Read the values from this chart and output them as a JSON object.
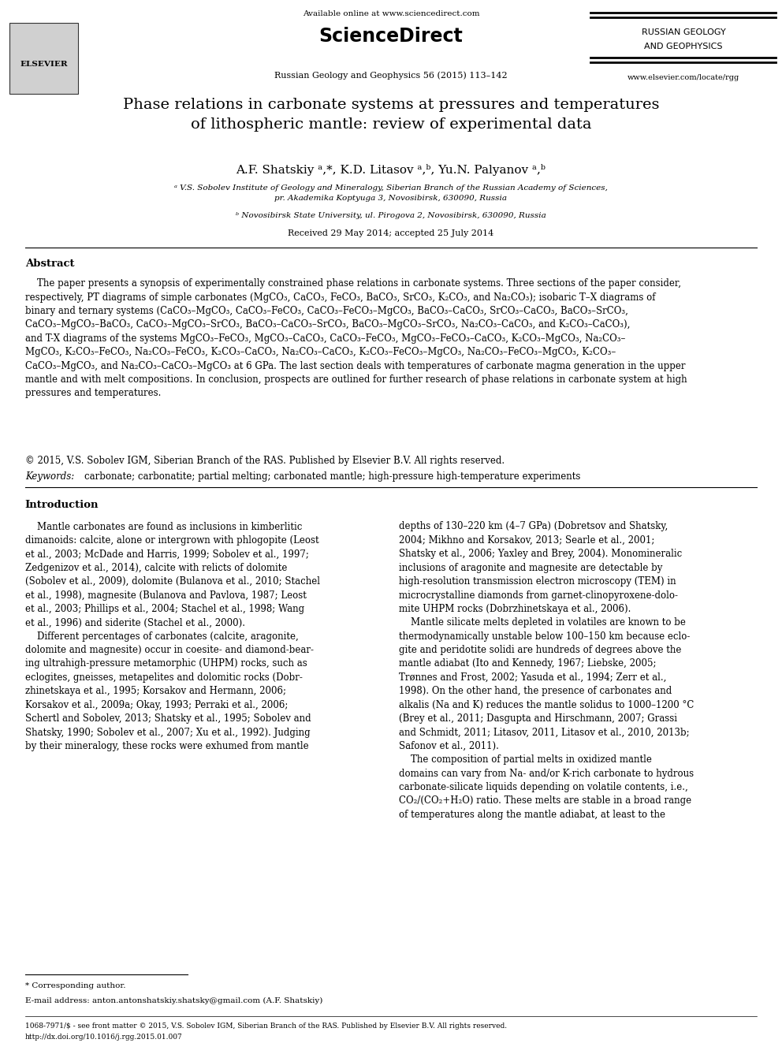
{
  "page_width": 9.92,
  "page_height": 13.23,
  "bg_color": "#ffffff",
  "header_available": "Available online at www.sciencedirect.com",
  "header_sciencedirect": "ScienceDirect",
  "header_journal": "Russian Geology and Geophysics 56 (2015) 113–142",
  "header_rgg_line1": "RUSSIAN GEOLOGY",
  "header_rgg_line2": "AND GEOPHYSICS",
  "header_website": "www.elsevier.com/locate/rgg",
  "title": "Phase relations in carbonate systems at pressures and temperatures\nof lithospheric mantle: review of experimental data",
  "authors": "A.F. Shatskiy ᵃ,*, K.D. Litasov ᵃ,ᵇ, Yu.N. Palyanov ᵃ,ᵇ",
  "affil_a": "ᵃ V.S. Sobolev Institute of Geology and Mineralogy, Siberian Branch of the Russian Academy of Sciences,\npr. Akademika Koptyuga 3, Novosibirsk, 630090, Russia",
  "affil_b": "ᵇ Novosibirsk State University, ul. Pirogova 2, Novosibirsk, 630090, Russia",
  "received": "Received 29 May 2014; accepted 25 July 2014",
  "abstract_title": "Abstract",
  "abstract_text": "    The paper presents a synopsis of experimentally constrained phase relations in carbonate systems. Three sections of the paper consider,\nrespectively, PT diagrams of simple carbonates (MgCO₃, CaCO₃, FeCO₃, BaCO₃, SrCO₃, K₂CO₃, and Na₂CO₃); isobaric T–X diagrams of\nbinary and ternary systems (CaCO₃–MgCO₃, CaCO₃–FeCO₃, CaCO₃–FeCO₃–MgCO₃, BaCO₃–CaCO₃, SrCO₃–CaCO₃, BaCO₃–SrCO₃,\nCaCO₃–MgCO₃–BaCO₃, CaCO₃–MgCO₃–SrCO₃, BaCO₃–CaCO₃–SrCO₃, BaCO₃–MgCO₃–SrCO₃, Na₂CO₃–CaCO₃, and K₂CO₃–CaCO₃),\nand T-X diagrams of the systems MgCO₃–FeCO₃, MgCO₃–CaCO₃, CaCO₃–FeCO₃, MgCO₃–FeCO₃–CaCO₃, K₂CO₃–MgCO₃, Na₂CO₃–\nMgCO₃, K₂CO₃–FeCO₃, Na₂CO₃–FeCO₃, K₂CO₃–CaCO₃, Na₂CO₃–CaCO₃, K₂CO₃–FeCO₃–MgCO₃, Na₂CO₃–FeCO₃–MgCO₃, K₂CO₃–\nCaCO₃–MgCO₃, and Na₂CO₃–CaCO₃–MgCO₃ at 6 GPa. The last section deals with temperatures of carbonate magma generation in the upper\nmantle and with melt compositions. In conclusion, prospects are outlined for further research of phase relations in carbonate system at high\npressures and temperatures.",
  "copyright": "© 2015, V.S. Sobolev IGM, Siberian Branch of the RAS. Published by Elsevier B.V. All rights reserved.",
  "keywords_label": "Keywords: ",
  "keywords": "carbonate; carbonatite; partial melting; carbonated mantle; high-pressure high-temperature experiments",
  "intro_title": "Introduction",
  "intro_col1": "    Mantle carbonates are found as inclusions in kimberlitic\ndimanoids: calcite, alone or intergrown with phlogopite (Leost\net al., 2003; McDade and Harris, 1999; Sobolev et al., 1997;\nZedgenizov et al., 2014), calcite with relicts of dolomite\n(Sobolev et al., 2009), dolomite (Bulanova et al., 2010; Stachel\net al., 1998), magnesite (Bulanova and Pavlova, 1987; Leost\net al., 2003; Phillips et al., 2004; Stachel et al., 1998; Wang\net al., 1996) and siderite (Stachel et al., 2000).\n    Different percentages of carbonates (calcite, aragonite,\ndolomite and magnesite) occur in coesite- and diamond-bear-\ning ultrahigh-pressure metamorphic (UHPM) rocks, such as\neclogites, gneisses, metapelites and dolomitic rocks (Dobr-\nzhinetskaya et al., 1995; Korsakov and Hermann, 2006;\nKorsakov et al., 2009a; Okay, 1993; Perraki et al., 2006;\nSchertl and Sobolev, 2013; Shatsky et al., 1995; Sobolev and\nShatsky, 1990; Sobolev et al., 2007; Xu et al., 1992). Judging\nby their mineralogy, these rocks were exhumed from mantle",
  "intro_col2": "depths of 130–220 km (4–7 GPa) (Dobretsov and Shatsky,\n2004; Mikhno and Korsakov, 2013; Searle et al., 2001;\nShatsky et al., 2006; Yaxley and Brey, 2004). Monomineralic\ninclusions of aragonite and magnesite are detectable by\nhigh-resolution transmission electron microscopy (TEM) in\nmicrocrystalline diamonds from garnet-clinopyroxene-dolo-\nmite UHPM rocks (Dobrzhinetskaya et al., 2006).\n    Mantle silicate melts depleted in volatiles are known to be\nthermodynamically unstable below 100–150 km because eclo-\ngite and peridotite solidi are hundreds of degrees above the\nmantle adiabat (Ito and Kennedy, 1967; Liebske, 2005;\nTrønnes and Frost, 2002; Yasuda et al., 1994; Zerr et al.,\n1998). On the other hand, the presence of carbonates and\nalkalis (Na and K) reduces the mantle solidus to 1000–1200 °C\n(Brey et al., 2011; Dasgupta and Hirschmann, 2007; Grassi\nand Schmidt, 2011; Litasov, 2011, Litasov et al., 2010, 2013b;\nSafonov et al., 2011).\n    The composition of partial melts in oxidized mantle\ndomains can vary from Na- and/or K-rich carbonate to hydrous\ncarbonate-silicate liquids depending on volatile contents, i.e.,\nCO₂/(CO₂+H₂O) ratio. These melts are stable in a broad range\nof temperatures along the mantle adiabat, at least to the",
  "footnote_star": "* Corresponding author.",
  "footnote_email": "E-mail address: anton.antonshatskiy.shatsky@gmail.com (A.F. Shatskiy)",
  "footnote_issn": "1068-7971/$ - see front matter © 2015, V.S. Sobolev IGM, Siberian Branch of the RAS. Published by Elsevier B.V. All rights reserved.",
  "footnote_doi": "http://dx.doi.org/10.1016/j.rgg.2015.01.007"
}
